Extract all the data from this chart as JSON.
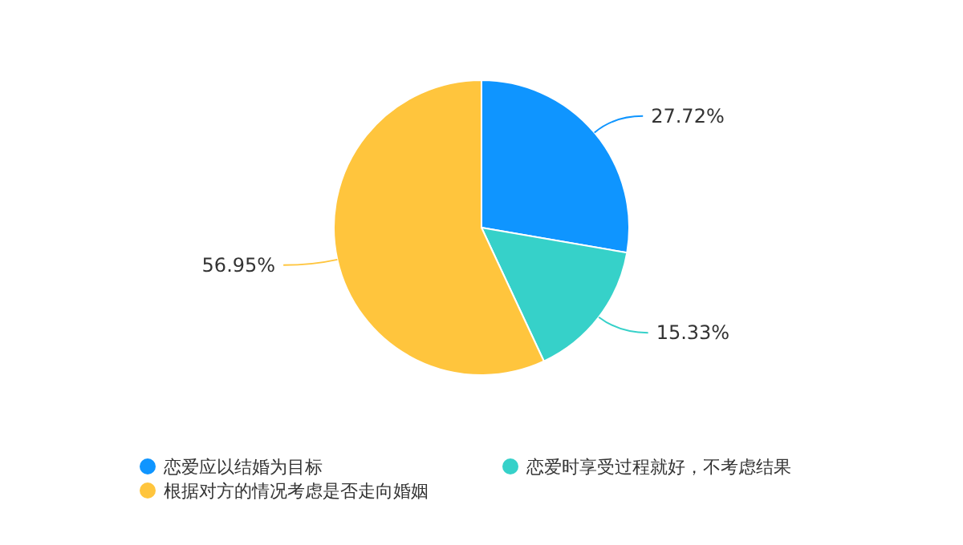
{
  "chart_data": {
    "type": "pie",
    "categories": [
      "恋爱应以结婚为目标",
      "恋爱时享受过程就好，不考虑结果",
      "根据对方的情况考虑是否走向婚姻"
    ],
    "values": [
      27.72,
      15.33,
      56.95
    ],
    "colors": [
      "#0f95ff",
      "#36d1c9",
      "#ffc53d"
    ],
    "value_labels": [
      "27.72%",
      "15.33%",
      "56.95%"
    ],
    "legend": "bottom"
  }
}
